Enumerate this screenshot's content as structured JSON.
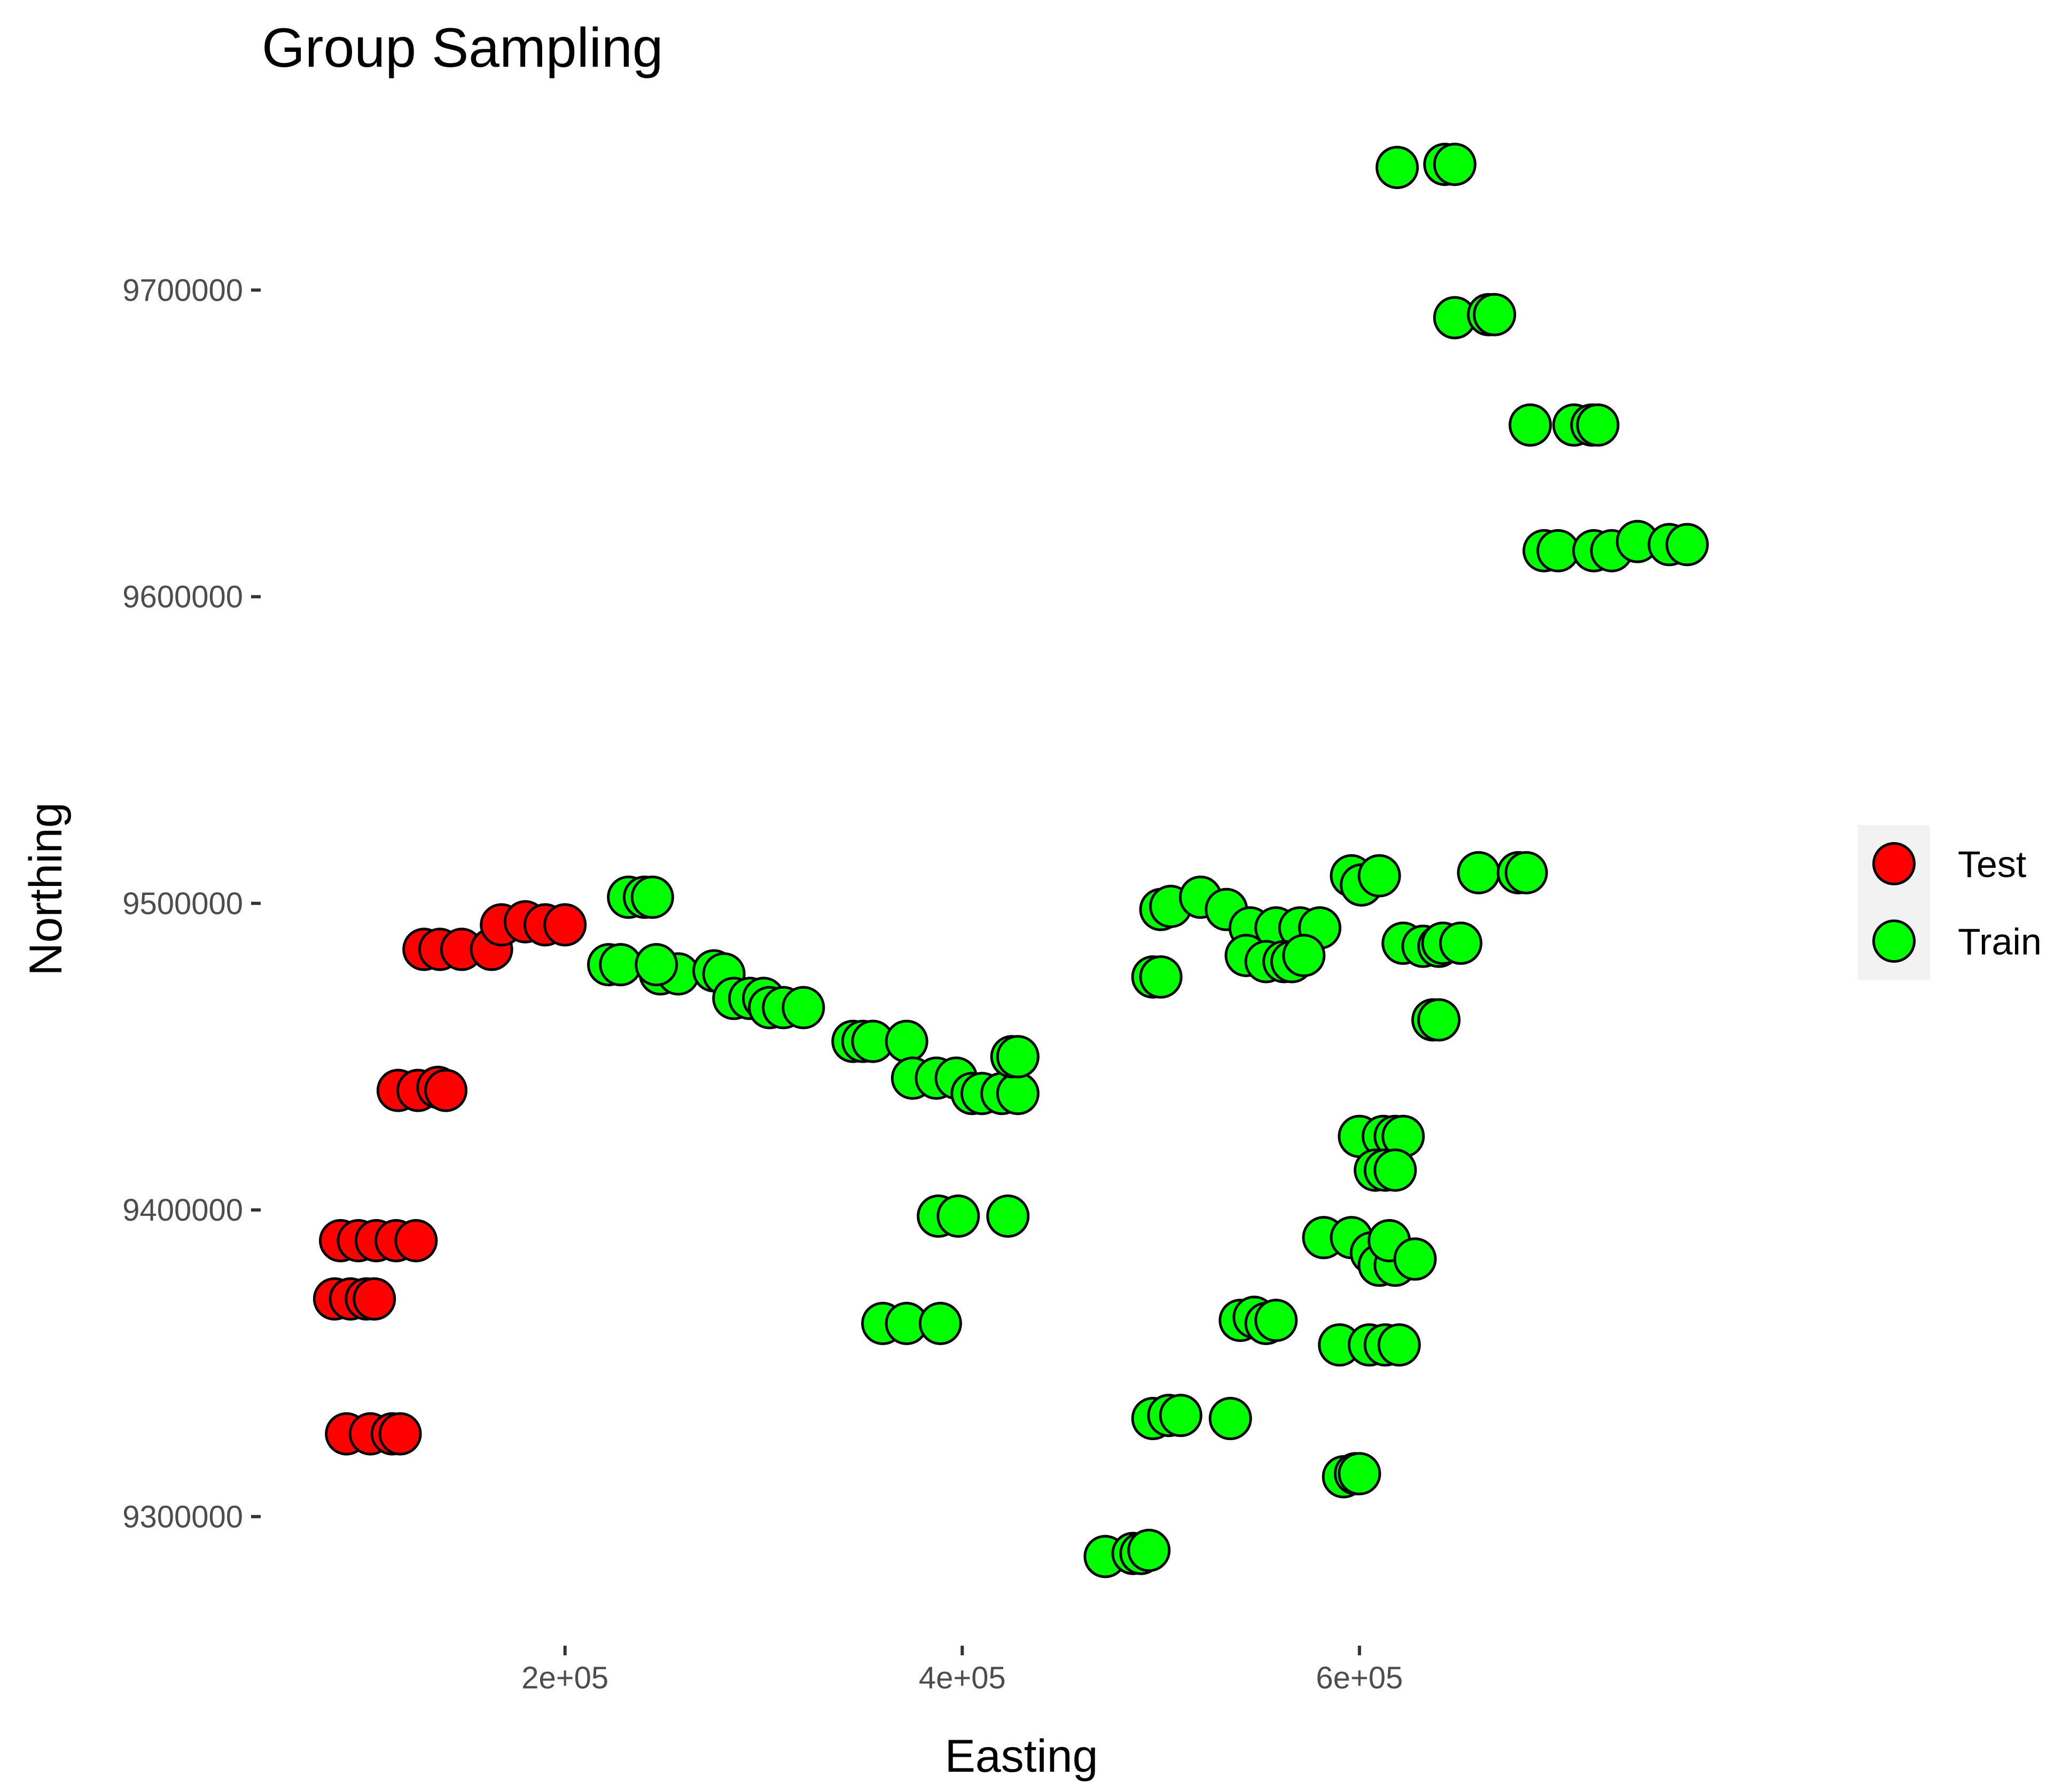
{
  "chart_data": {
    "type": "scatter",
    "title": "Group Sampling",
    "xlabel": "Easting",
    "ylabel": "Northing",
    "xlim": [
      50000,
      830000
    ],
    "ylim": [
      9260000,
      9765000
    ],
    "x_ticks": [
      200000,
      400000,
      600000
    ],
    "x_tick_labels": [
      "2e+05",
      "4e+05",
      "6e+05"
    ],
    "y_ticks": [
      9300000,
      9400000,
      9500000,
      9600000,
      9700000
    ],
    "y_tick_labels": [
      "9300000",
      "9400000",
      "9500000",
      "9600000",
      "9700000"
    ],
    "grid": false,
    "legend_position": "right",
    "series": [
      {
        "name": "Test",
        "color": "#ff0000",
        "points": [
          [
            84000,
            9371000
          ],
          [
            92000,
            9371000
          ],
          [
            100000,
            9371000
          ],
          [
            104000,
            9371000
          ],
          [
            87000,
            9390000
          ],
          [
            96000,
            9390000
          ],
          [
            105000,
            9390000
          ],
          [
            115000,
            9390000
          ],
          [
            125000,
            9390000
          ],
          [
            90000,
            9327000
          ],
          [
            102000,
            9327000
          ],
          [
            113000,
            9327000
          ],
          [
            117000,
            9327000
          ],
          [
            116000,
            9439000
          ],
          [
            126000,
            9439000
          ],
          [
            136000,
            9440000
          ],
          [
            140000,
            9439000
          ],
          [
            129000,
            9485000
          ],
          [
            137000,
            9485000
          ],
          [
            148000,
            9485000
          ],
          [
            163000,
            9485000
          ],
          [
            168000,
            9493000
          ],
          [
            180000,
            9494000
          ],
          [
            190000,
            9493000
          ],
          [
            200000,
            9493000
          ]
        ]
      },
      {
        "name": "Train",
        "color": "#00ff00",
        "points": [
          [
            222000,
            9480000
          ],
          [
            228000,
            9480000
          ],
          [
            232000,
            9502000
          ],
          [
            240000,
            9502000
          ],
          [
            244000,
            9502000
          ],
          [
            248000,
            9477000
          ],
          [
            257000,
            9477000
          ],
          [
            246000,
            9480000
          ],
          [
            275000,
            9478000
          ],
          [
            280000,
            9477000
          ],
          [
            285000,
            9469000
          ],
          [
            293000,
            9469000
          ],
          [
            300000,
            9469000
          ],
          [
            303000,
            9466000
          ],
          [
            310000,
            9466000
          ],
          [
            320000,
            9466000
          ],
          [
            345000,
            9455000
          ],
          [
            350000,
            9455000
          ],
          [
            355000,
            9455000
          ],
          [
            372000,
            9455000
          ],
          [
            375000,
            9443000
          ],
          [
            387000,
            9443000
          ],
          [
            397000,
            9443000
          ],
          [
            405000,
            9438000
          ],
          [
            410000,
            9438000
          ],
          [
            420000,
            9438000
          ],
          [
            428000,
            9438000
          ],
          [
            425000,
            9450000
          ],
          [
            428000,
            9450000
          ],
          [
            360000,
            9363000
          ],
          [
            372000,
            9363000
          ],
          [
            389000,
            9363000
          ],
          [
            388000,
            9398000
          ],
          [
            398000,
            9398000
          ],
          [
            423000,
            9398000
          ],
          [
            472000,
            9287000
          ],
          [
            486000,
            9288000
          ],
          [
            490000,
            9288000
          ],
          [
            494000,
            9289000
          ],
          [
            496000,
            9332000
          ],
          [
            504000,
            9333000
          ],
          [
            510000,
            9333000
          ],
          [
            535000,
            9332000
          ],
          [
            496000,
            9476000
          ],
          [
            500000,
            9476000
          ],
          [
            500000,
            9498000
          ],
          [
            505000,
            9499000
          ],
          [
            520000,
            9502000
          ],
          [
            533000,
            9498000
          ],
          [
            545000,
            9492000
          ],
          [
            558000,
            9492000
          ],
          [
            570000,
            9492000
          ],
          [
            580000,
            9492000
          ],
          [
            543000,
            9483000
          ],
          [
            553000,
            9481000
          ],
          [
            562000,
            9481000
          ],
          [
            566000,
            9481000
          ],
          [
            572000,
            9483000
          ],
          [
            540000,
            9364000
          ],
          [
            547000,
            9365000
          ],
          [
            553000,
            9363000
          ],
          [
            558000,
            9364000
          ],
          [
            582000,
            9391000
          ],
          [
            596000,
            9391000
          ],
          [
            606000,
            9386000
          ],
          [
            610000,
            9382000
          ],
          [
            618000,
            9382000
          ],
          [
            615000,
            9390000
          ],
          [
            628000,
            9384000
          ],
          [
            592000,
            9313000
          ],
          [
            598000,
            9314000
          ],
          [
            600000,
            9314000
          ],
          [
            590000,
            9356000
          ],
          [
            605000,
            9356000
          ],
          [
            613000,
            9356000
          ],
          [
            620000,
            9356000
          ],
          [
            600000,
            9424000
          ],
          [
            612000,
            9424000
          ],
          [
            618000,
            9424000
          ],
          [
            622000,
            9424000
          ],
          [
            608000,
            9413000
          ],
          [
            613000,
            9413000
          ],
          [
            618000,
            9413000
          ],
          [
            596000,
            9509000
          ],
          [
            601000,
            9506000
          ],
          [
            610000,
            9509000
          ],
          [
            622000,
            9487000
          ],
          [
            632000,
            9486000
          ],
          [
            640000,
            9486000
          ],
          [
            642000,
            9487000
          ],
          [
            651000,
            9487000
          ],
          [
            637000,
            9462000
          ],
          [
            640000,
            9462000
          ],
          [
            660000,
            9510000
          ],
          [
            680000,
            9510000
          ],
          [
            684000,
            9510000
          ],
          [
            619000,
            9740000
          ],
          [
            643000,
            9741000
          ],
          [
            648000,
            9741000
          ],
          [
            648000,
            9691000
          ],
          [
            665000,
            9692000
          ],
          [
            668000,
            9692000
          ],
          [
            686000,
            9656000
          ],
          [
            708000,
            9656000
          ],
          [
            717000,
            9656000
          ],
          [
            720000,
            9656000
          ],
          [
            693000,
            9615000
          ],
          [
            700000,
            9615000
          ],
          [
            718000,
            9615000
          ],
          [
            727000,
            9615000
          ],
          [
            740000,
            9618000
          ],
          [
            756000,
            9617000
          ],
          [
            765000,
            9617000
          ]
        ]
      }
    ]
  }
}
